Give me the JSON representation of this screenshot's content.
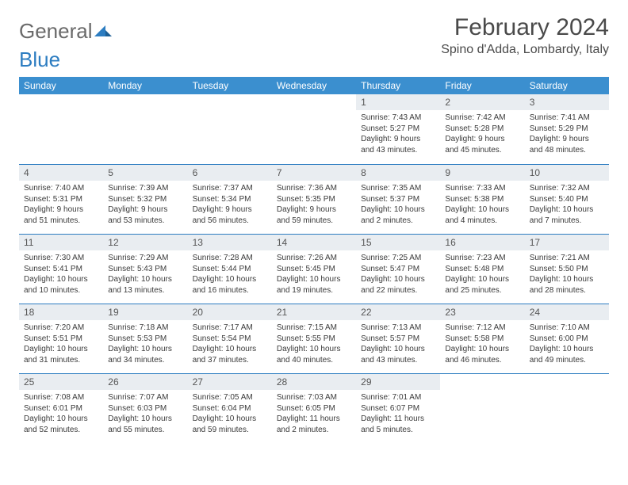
{
  "logo": {
    "text1": "General",
    "text2": "Blue"
  },
  "title": "February 2024",
  "location": "Spino d'Adda, Lombardy, Italy",
  "colors": {
    "header_bg": "#3b8fcf",
    "border": "#2d7dc1",
    "daynum_bg": "#e9edf1",
    "text": "#3a3a3a",
    "logo_gray": "#6a6a6a",
    "logo_blue": "#2d7dc1"
  },
  "weekdays": [
    "Sunday",
    "Monday",
    "Tuesday",
    "Wednesday",
    "Thursday",
    "Friday",
    "Saturday"
  ],
  "weeks": [
    [
      null,
      null,
      null,
      null,
      {
        "n": "1",
        "sunrise": "7:43 AM",
        "sunset": "5:27 PM",
        "daylight": "9 hours and 43 minutes."
      },
      {
        "n": "2",
        "sunrise": "7:42 AM",
        "sunset": "5:28 PM",
        "daylight": "9 hours and 45 minutes."
      },
      {
        "n": "3",
        "sunrise": "7:41 AM",
        "sunset": "5:29 PM",
        "daylight": "9 hours and 48 minutes."
      }
    ],
    [
      {
        "n": "4",
        "sunrise": "7:40 AM",
        "sunset": "5:31 PM",
        "daylight": "9 hours and 51 minutes."
      },
      {
        "n": "5",
        "sunrise": "7:39 AM",
        "sunset": "5:32 PM",
        "daylight": "9 hours and 53 minutes."
      },
      {
        "n": "6",
        "sunrise": "7:37 AM",
        "sunset": "5:34 PM",
        "daylight": "9 hours and 56 minutes."
      },
      {
        "n": "7",
        "sunrise": "7:36 AM",
        "sunset": "5:35 PM",
        "daylight": "9 hours and 59 minutes."
      },
      {
        "n": "8",
        "sunrise": "7:35 AM",
        "sunset": "5:37 PM",
        "daylight": "10 hours and 2 minutes."
      },
      {
        "n": "9",
        "sunrise": "7:33 AM",
        "sunset": "5:38 PM",
        "daylight": "10 hours and 4 minutes."
      },
      {
        "n": "10",
        "sunrise": "7:32 AM",
        "sunset": "5:40 PM",
        "daylight": "10 hours and 7 minutes."
      }
    ],
    [
      {
        "n": "11",
        "sunrise": "7:30 AM",
        "sunset": "5:41 PM",
        "daylight": "10 hours and 10 minutes."
      },
      {
        "n": "12",
        "sunrise": "7:29 AM",
        "sunset": "5:43 PM",
        "daylight": "10 hours and 13 minutes."
      },
      {
        "n": "13",
        "sunrise": "7:28 AM",
        "sunset": "5:44 PM",
        "daylight": "10 hours and 16 minutes."
      },
      {
        "n": "14",
        "sunrise": "7:26 AM",
        "sunset": "5:45 PM",
        "daylight": "10 hours and 19 minutes."
      },
      {
        "n": "15",
        "sunrise": "7:25 AM",
        "sunset": "5:47 PM",
        "daylight": "10 hours and 22 minutes."
      },
      {
        "n": "16",
        "sunrise": "7:23 AM",
        "sunset": "5:48 PM",
        "daylight": "10 hours and 25 minutes."
      },
      {
        "n": "17",
        "sunrise": "7:21 AM",
        "sunset": "5:50 PM",
        "daylight": "10 hours and 28 minutes."
      }
    ],
    [
      {
        "n": "18",
        "sunrise": "7:20 AM",
        "sunset": "5:51 PM",
        "daylight": "10 hours and 31 minutes."
      },
      {
        "n": "19",
        "sunrise": "7:18 AM",
        "sunset": "5:53 PM",
        "daylight": "10 hours and 34 minutes."
      },
      {
        "n": "20",
        "sunrise": "7:17 AM",
        "sunset": "5:54 PM",
        "daylight": "10 hours and 37 minutes."
      },
      {
        "n": "21",
        "sunrise": "7:15 AM",
        "sunset": "5:55 PM",
        "daylight": "10 hours and 40 minutes."
      },
      {
        "n": "22",
        "sunrise": "7:13 AM",
        "sunset": "5:57 PM",
        "daylight": "10 hours and 43 minutes."
      },
      {
        "n": "23",
        "sunrise": "7:12 AM",
        "sunset": "5:58 PM",
        "daylight": "10 hours and 46 minutes."
      },
      {
        "n": "24",
        "sunrise": "7:10 AM",
        "sunset": "6:00 PM",
        "daylight": "10 hours and 49 minutes."
      }
    ],
    [
      {
        "n": "25",
        "sunrise": "7:08 AM",
        "sunset": "6:01 PM",
        "daylight": "10 hours and 52 minutes."
      },
      {
        "n": "26",
        "sunrise": "7:07 AM",
        "sunset": "6:03 PM",
        "daylight": "10 hours and 55 minutes."
      },
      {
        "n": "27",
        "sunrise": "7:05 AM",
        "sunset": "6:04 PM",
        "daylight": "10 hours and 59 minutes."
      },
      {
        "n": "28",
        "sunrise": "7:03 AM",
        "sunset": "6:05 PM",
        "daylight": "11 hours and 2 minutes."
      },
      {
        "n": "29",
        "sunrise": "7:01 AM",
        "sunset": "6:07 PM",
        "daylight": "11 hours and 5 minutes."
      },
      null,
      null
    ]
  ],
  "labels": {
    "sunrise": "Sunrise:",
    "sunset": "Sunset:",
    "daylight": "Daylight:"
  }
}
